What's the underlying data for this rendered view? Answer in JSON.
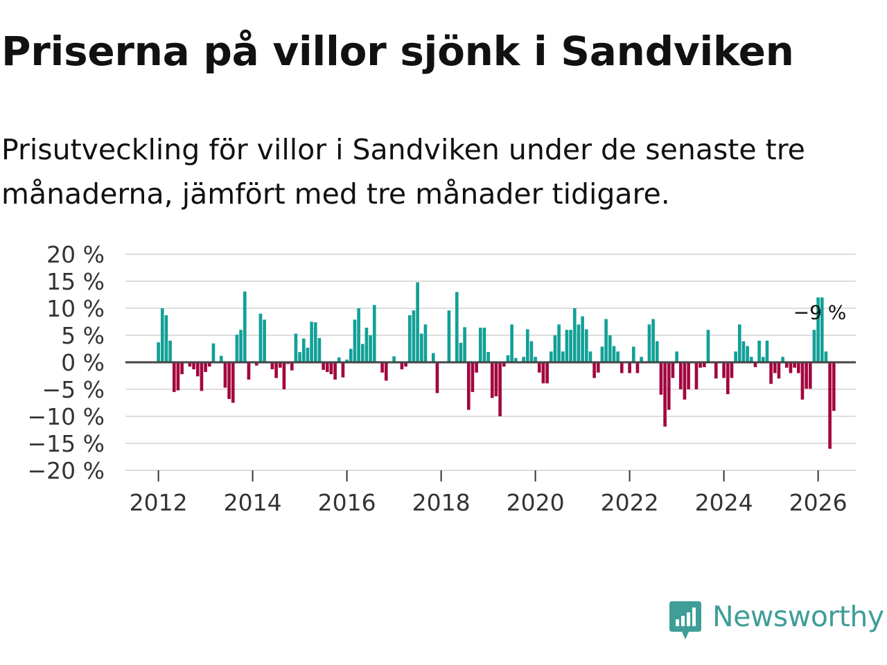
{
  "header": {
    "title": "Priserna på villor sjönk i Sandviken",
    "subtitle": "Prisutveckling för villor i Sandviken under de senaste tre månaderna, jämfört med tre månader tidigare."
  },
  "brand": {
    "name": "Newsworthy",
    "icon": "newsworthy-logo-icon",
    "color": "#3f9e97"
  },
  "colors": {
    "positive": "#12a097",
    "negative": "#a3063f",
    "grid": "#dddddd",
    "zero_line": "#444444"
  },
  "chart_data": {
    "type": "bar",
    "title": "Priserna på villor sjönk i Sandviken",
    "xlabel": "",
    "ylabel": "",
    "ylim": [
      -20,
      20
    ],
    "yticks": [
      20,
      15,
      10,
      5,
      0,
      -5,
      -10,
      -15,
      -20
    ],
    "ytick_labels": [
      "20 %",
      "15 %",
      "10 %",
      "5 %",
      "0 %",
      "−5 %",
      "−10 %",
      "−15 %",
      "−20 %"
    ],
    "xlim": [
      2011.3,
      2026.8
    ],
    "xticks": [
      2012,
      2014,
      2016,
      2018,
      2020,
      2022,
      2024,
      2026
    ],
    "xtick_labels": [
      "2012",
      "2014",
      "2016",
      "2018",
      "2020",
      "2022",
      "2024",
      "2026"
    ],
    "start": [
      2012,
      1
    ],
    "unit": "%",
    "annotation": {
      "text": "−9 %",
      "index": 169
    },
    "values": [
      3.7,
      10,
      8.7,
      4,
      -5.5,
      -5.2,
      -2.2,
      0,
      -0.8,
      -1.3,
      -2.6,
      -5.3,
      -1.8,
      -0.8,
      3.5,
      0.1,
      1.2,
      -4.7,
      -6.8,
      -7.5,
      5.1,
      6,
      13.1,
      -3.2,
      0,
      -0.6,
      9,
      7.9,
      0,
      -1.3,
      -2.9,
      -1,
      -5,
      -0.3,
      -1.5,
      5.3,
      1.9,
      4.4,
      2.7,
      7.5,
      7.4,
      4.5,
      -1.4,
      -1.8,
      -2.2,
      -3.2,
      0.9,
      -2.8,
      0.5,
      2.5,
      7.9,
      10,
      3.4,
      6.4,
      5,
      10.6,
      0.2,
      -1.9,
      -3.4,
      0,
      1.1,
      0,
      -1.3,
      -0.8,
      8.7,
      9.6,
      14.8,
      5.3,
      7,
      0,
      1.7,
      -5.7,
      0,
      0,
      9.6,
      0,
      13,
      3.6,
      6.5,
      -8.8,
      -5.5,
      -1.9,
      6.4,
      6.4,
      1.9,
      -6.6,
      -6.3,
      -10,
      -0.8,
      1.3,
      7,
      0.8,
      0,
      1,
      6.1,
      3.9,
      1,
      -1.9,
      -3.9,
      -3.9,
      2,
      5,
      7,
      2,
      6,
      6,
      10,
      7,
      8.5,
      6.1,
      2,
      -2.9,
      -1.9,
      2.9,
      8,
      5,
      3,
      2,
      -2,
      0,
      -2,
      2.9,
      -2,
      1,
      0,
      7,
      8,
      3.9,
      -6,
      -11.9,
      -8.8,
      -2.9,
      2,
      -5,
      -6.9,
      -5,
      0,
      -5,
      -1,
      -0.9,
      6,
      0,
      -3,
      0,
      -2.9,
      -5.9,
      -2.9,
      2,
      7,
      3.9,
      3,
      1,
      -0.9,
      4,
      1,
      4,
      -4,
      -2,
      -3,
      1,
      -1,
      -2,
      -1,
      -2,
      -6.9,
      -4.9,
      -4.9,
      6,
      12,
      12,
      2,
      -16,
      -9
    ]
  }
}
